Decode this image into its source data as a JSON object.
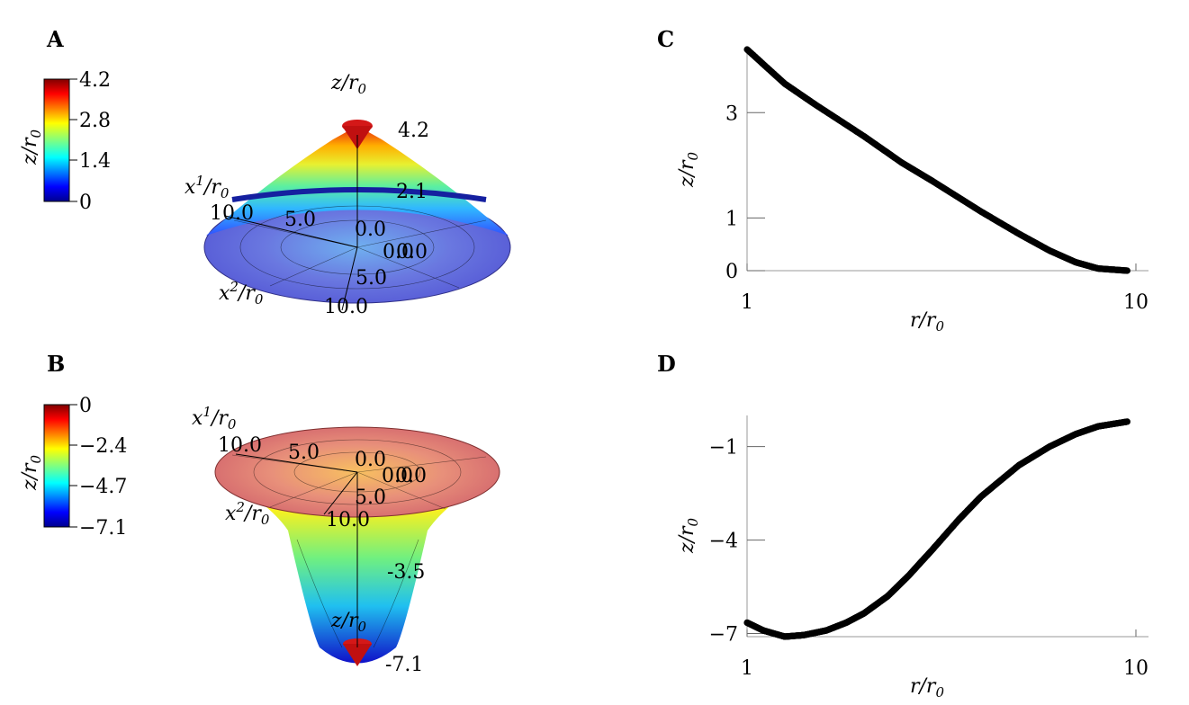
{
  "panels": {
    "A": {
      "label": "A",
      "colorbar": {
        "label": "z/r",
        "label_sub": "0",
        "ticks": [
          "4.2",
          "2.8",
          "1.4",
          "0"
        ],
        "range": [
          0,
          4.2
        ]
      },
      "surface": {
        "z_axis_label": "z/r",
        "z_axis_sub": "0",
        "x1_label": "x",
        "x1_sup": "1",
        "x1_div": "/r",
        "x1_sub": "0",
        "x2_label": "x",
        "x2_sup": "2",
        "x2_div": "/r",
        "x2_sub": "0",
        "z_ticks": [
          "4.2",
          "2.1"
        ],
        "x1_ticks": [
          "10.0",
          "5.0",
          "0.0"
        ],
        "x2_ticks": [
          "0.0",
          "0.0",
          "5.0",
          "10.0"
        ]
      }
    },
    "B": {
      "label": "B",
      "colorbar": {
        "label": "z/r",
        "label_sub": "0",
        "ticks": [
          "0",
          "−2.4",
          "−4.7",
          "−7.1"
        ],
        "range": [
          -7.1,
          0
        ]
      },
      "surface": {
        "z_axis_label": "z/r",
        "z_axis_sub": "0",
        "x1_label": "x",
        "x1_sup": "1",
        "x1_div": "/r",
        "x1_sub": "0",
        "x2_label": "x",
        "x2_sup": "2",
        "x2_div": "/r",
        "x2_sub": "0",
        "z_ticks": [
          "-3.5",
          "-7.1"
        ],
        "x1_ticks": [
          "10.0",
          "5.0",
          "0.0"
        ],
        "x2_ticks": [
          "0.0",
          "0.0",
          "5.0",
          "10.0"
        ]
      }
    },
    "C": {
      "label": "C"
    },
    "D": {
      "label": "D"
    }
  },
  "chart_data": [
    {
      "id": "C",
      "type": "scatter",
      "xlabel": "r/r",
      "xlabel_sub": "0",
      "ylabel": "z/r",
      "ylabel_sub": "0",
      "x_scale": "log",
      "xlim": [
        1,
        10
      ],
      "ylim": [
        0,
        4.2
      ],
      "xticks": [
        "1",
        "10"
      ],
      "yticks": [
        0,
        1,
        3
      ],
      "x": [
        1.0,
        1.25,
        1.5,
        2.0,
        2.5,
        3.0,
        4.0,
        5.0,
        6.0,
        7.0,
        8.0,
        9.5
      ],
      "y": [
        4.2,
        3.55,
        3.15,
        2.55,
        2.05,
        1.7,
        1.12,
        0.7,
        0.38,
        0.16,
        0.04,
        0.0
      ]
    },
    {
      "id": "D",
      "type": "scatter",
      "xlabel": "r/r",
      "xlabel_sub": "0",
      "ylabel": "z/r",
      "ylabel_sub": "0",
      "x_scale": "log",
      "xlim": [
        1,
        10
      ],
      "ylim": [
        -7.1,
        0
      ],
      "xticks": [
        "1",
        "10"
      ],
      "yticks": [
        -7,
        -4,
        -1
      ],
      "x": [
        1.0,
        1.1,
        1.25,
        1.4,
        1.6,
        1.8,
        2.0,
        2.3,
        2.6,
        3.0,
        3.5,
        4.0,
        5.0,
        6.0,
        7.0,
        8.0,
        9.5
      ],
      "y": [
        -6.65,
        -6.9,
        -7.1,
        -7.05,
        -6.9,
        -6.65,
        -6.35,
        -5.8,
        -5.15,
        -4.3,
        -3.35,
        -2.6,
        -1.6,
        -1.0,
        -0.6,
        -0.35,
        -0.2
      ]
    }
  ]
}
